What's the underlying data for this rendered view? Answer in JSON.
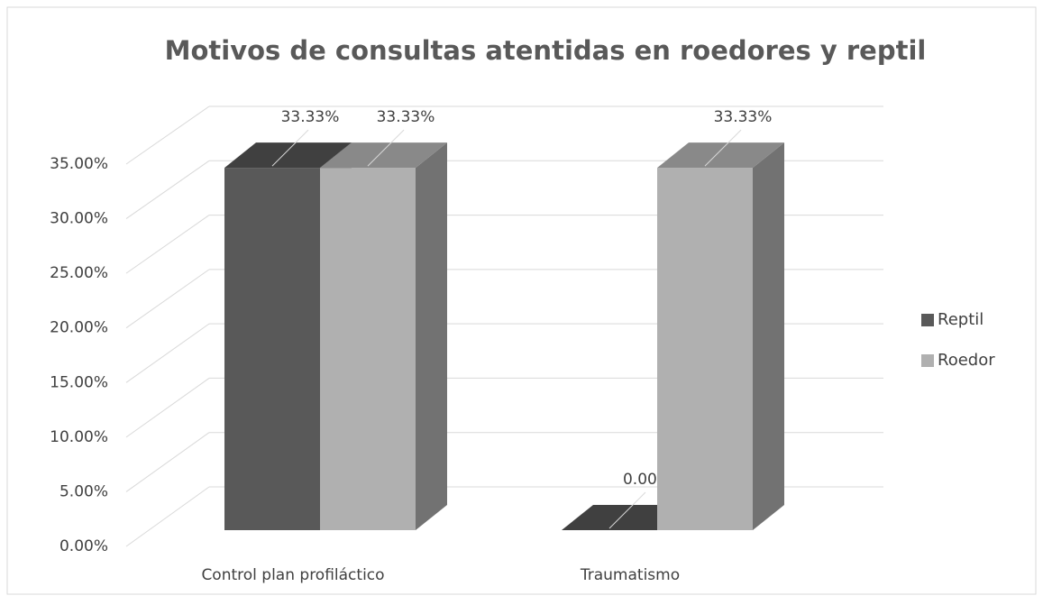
{
  "chart_data": {
    "type": "bar3d",
    "title": "Motivos de consultas atentidas en roedores y reptil",
    "categories": [
      "Control plan profiláctico",
      "Traumatismo"
    ],
    "series": [
      {
        "name": "Reptil",
        "color": "#595959",
        "values": [
          33.33,
          0
        ],
        "value_labels": [
          "33.33%",
          "0.00%"
        ]
      },
      {
        "name": "Roedor",
        "color": "#b0b0b0",
        "values": [
          33.33,
          33.33
        ],
        "value_labels": [
          "33.33%",
          "33.33%"
        ]
      }
    ],
    "ylim": [
      0,
      35
    ],
    "yticks": [
      {
        "value": 0,
        "label": "0.00%"
      },
      {
        "value": 5,
        "label": "5.00%"
      },
      {
        "value": 10,
        "label": "10.00%"
      },
      {
        "value": 15,
        "label": "15.00%"
      },
      {
        "value": 20,
        "label": "20.00%"
      },
      {
        "value": 25,
        "label": "25.00%"
      },
      {
        "value": 30,
        "label": "30.00%"
      },
      {
        "value": 35,
        "label": "35.00%"
      }
    ],
    "grid": true,
    "legend": "right"
  }
}
